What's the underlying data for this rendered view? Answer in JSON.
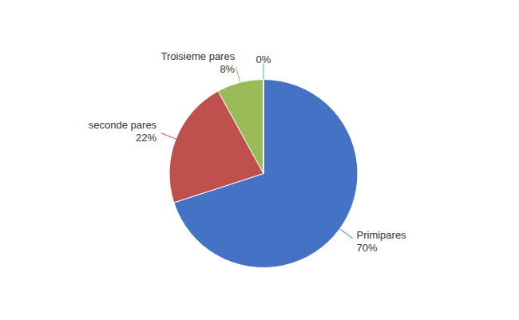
{
  "chart_data": {
    "type": "pie",
    "categories": [
      "Primipares",
      "seconde pares",
      "Troisieme pares",
      null
    ],
    "values": [
      70,
      22,
      8,
      0.001
    ],
    "value_labels": [
      "70%",
      "22%",
      "8%",
      "0%"
    ],
    "colors": [
      "#4472C4",
      "#C0504D",
      "#9BBB59",
      "#4BACC6"
    ],
    "data_labels": true
  }
}
